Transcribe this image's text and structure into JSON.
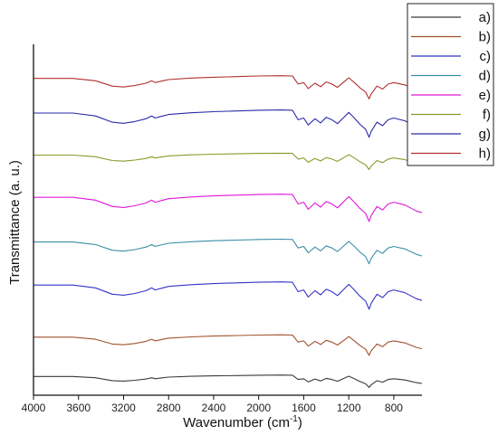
{
  "chart_data": {
    "type": "line",
    "xlabel_main": "Wavenumber (cm",
    "xlabel_sup": "-1",
    "xlabel_close": ")",
    "ylabel": "Transmittance (a. u.)",
    "xlim": [
      4000,
      550
    ],
    "x_reversed": true,
    "x_ticks": [
      "4000",
      "3600",
      "3200",
      "2800",
      "2400",
      "2000",
      "1600",
      "1200",
      "800"
    ],
    "x_tick_values": [
      4000,
      3600,
      3200,
      2800,
      2400,
      2000,
      1600,
      1200,
      800
    ],
    "y_tick_labels": false,
    "grid": false,
    "legend_position": "top-right",
    "x": [
      4000,
      3650,
      3450,
      3300,
      3200,
      3100,
      3000,
      2950,
      2920,
      2850,
      2800,
      2600,
      2400,
      2200,
      2000,
      1800,
      1700,
      1650,
      1600,
      1560,
      1500,
      1450,
      1400,
      1350,
      1300,
      1250,
      1200,
      1150,
      1100,
      1050,
      1020,
      1000,
      950,
      900,
      850,
      800,
      700,
      600,
      550
    ],
    "series": [
      {
        "name": "a)",
        "color": "#3a3a3a",
        "offset": 0.02,
        "amp": 0.045
      },
      {
        "name": "b)",
        "color": "#a0522d",
        "offset": 0.11,
        "amp": 0.075
      },
      {
        "name": "c)",
        "color": "#3434c8",
        "offset": 0.24,
        "amp": 0.1
      },
      {
        "name": "d)",
        "color": "#3a8fa6",
        "offset": 0.37,
        "amp": 0.09
      },
      {
        "name": "e)",
        "color": "#e018d8",
        "offset": 0.49,
        "amp": 0.1
      },
      {
        "name": "f)",
        "color": "#8a9a2a",
        "offset": 0.64,
        "amp": 0.06
      },
      {
        "name": "g)",
        "color": "#2a2aa8",
        "offset": 0.73,
        "amp": 0.1
      },
      {
        "name": "h)",
        "color": "#b03030",
        "offset": 0.84,
        "amp": 0.085
      }
    ],
    "profile": [
      0.74,
      0.74,
      0.66,
      0.48,
      0.45,
      0.5,
      0.58,
      0.66,
      0.6,
      0.66,
      0.7,
      0.75,
      0.78,
      0.8,
      0.82,
      0.83,
      0.82,
      0.55,
      0.6,
      0.4,
      0.58,
      0.46,
      0.62,
      0.55,
      0.44,
      0.6,
      0.76,
      0.6,
      0.42,
      0.28,
      0.05,
      0.22,
      0.48,
      0.38,
      0.55,
      0.6,
      0.52,
      0.35,
      0.3
    ]
  }
}
